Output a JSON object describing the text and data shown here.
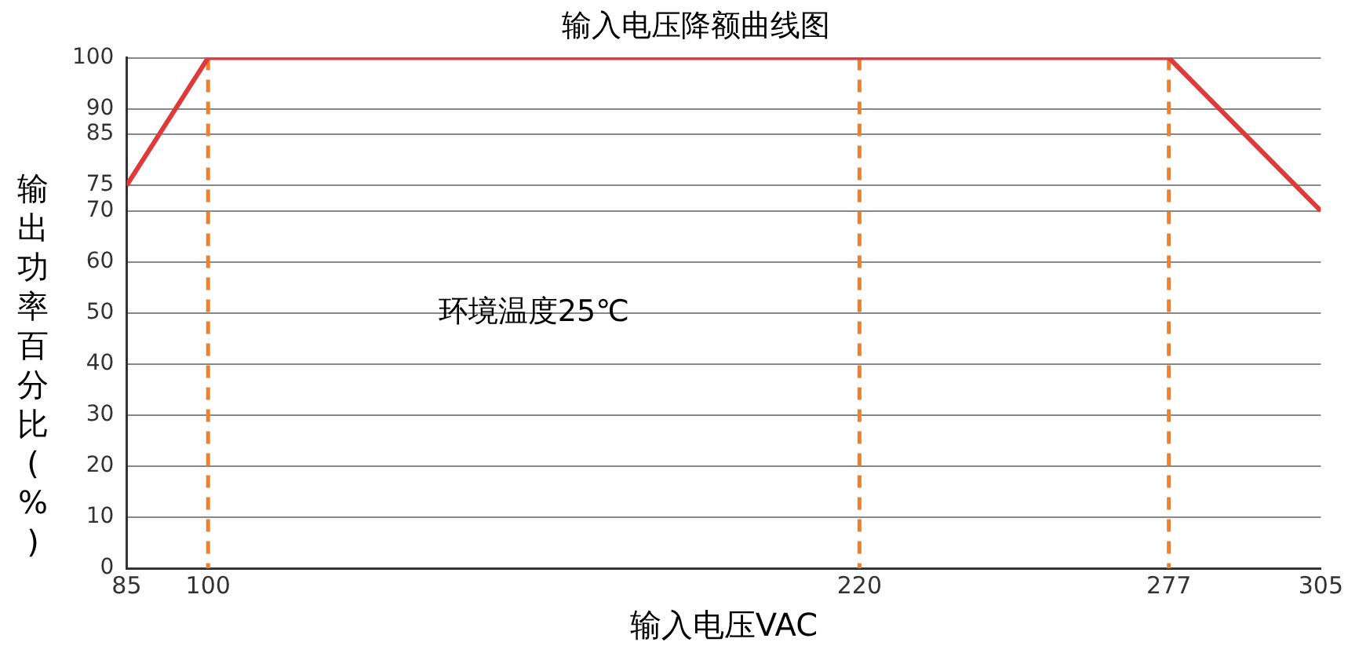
{
  "chart_data": {
    "type": "line",
    "title": "输入电压降额曲线图",
    "xlabel": "输入电压VAC",
    "ylabel": "输出功率百分比(%)",
    "annotations": [
      "环境温度25℃"
    ],
    "x": [
      85,
      100,
      277,
      305
    ],
    "series": [
      {
        "color": "#e0393a",
        "values": [
          75,
          100,
          100,
          70
        ]
      }
    ],
    "xlim": [
      85,
      305
    ],
    "xticks": [
      85,
      100,
      220,
      277,
      305
    ],
    "ylim": [
      0,
      100
    ],
    "yticks": [
      0,
      10,
      20,
      30,
      40,
      50,
      60,
      70,
      75,
      85,
      90,
      100
    ],
    "ref_lines": [
      {
        "axis": "x",
        "value": 100,
        "color": "#f07f2a",
        "line_style": "dashed"
      },
      {
        "axis": "x",
        "value": 220,
        "color": "#f07f2a",
        "line_style": "dashed"
      },
      {
        "axis": "x",
        "value": 277,
        "color": "#f07f2a",
        "line_style": "dashed"
      }
    ],
    "grid": "y",
    "legend": false,
    "marker": "none",
    "line_style": "solid"
  }
}
